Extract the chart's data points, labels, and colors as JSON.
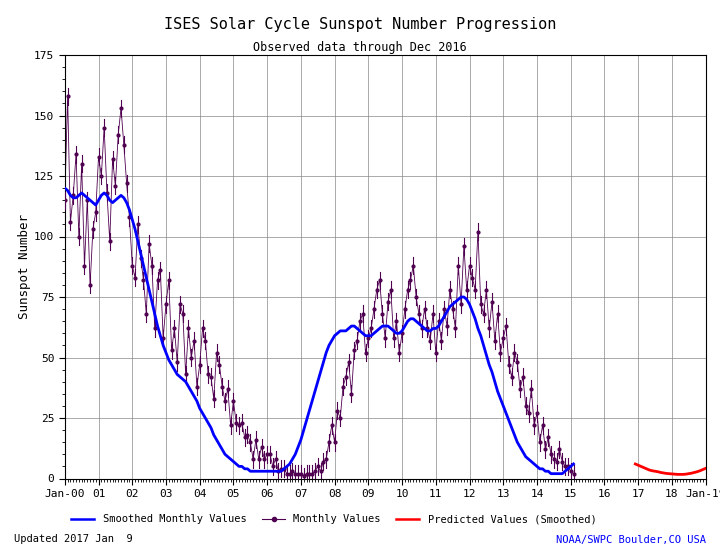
{
  "title": "ISES Solar Cycle Sunspot Number Progression",
  "subtitle": "Observed data through Dec 2016",
  "ylabel": "Sunspot Number",
  "updated_text": "Updated 2017 Jan  9",
  "credit_text": "NOAA/SWPC Boulder,CO USA",
  "credit_color": "#0000FF",
  "ylim": [
    0,
    175
  ],
  "yticks": [
    0,
    25,
    50,
    75,
    100,
    125,
    150,
    175
  ],
  "bg_color": "#ffffff",
  "grid_color": "#000000",
  "smoothed_color": "#0000FF",
  "monthly_color": "#500050",
  "predicted_color": "#FF0000",
  "start_year": 2000.0,
  "xtick_labels": [
    "Jan-00",
    "01",
    "02",
    "03",
    "04",
    "05",
    "06",
    "07",
    "08",
    "09",
    "10",
    "11",
    "12",
    "13",
    "14",
    "15",
    "16",
    "17",
    "18",
    "Jan-19"
  ],
  "smoothed_monthly": [
    120,
    119,
    117,
    116,
    116,
    117,
    118,
    117,
    116,
    115,
    114,
    113,
    115,
    117,
    118,
    117,
    115,
    114,
    115,
    116,
    117,
    116,
    114,
    111,
    107,
    103,
    98,
    93,
    88,
    83,
    78,
    73,
    68,
    63,
    59,
    55,
    52,
    49,
    47,
    45,
    43,
    42,
    41,
    40,
    38,
    36,
    34,
    32,
    29,
    27,
    25,
    23,
    21,
    18,
    16,
    14,
    12,
    10,
    9,
    8,
    7,
    6,
    5,
    5,
    4,
    4,
    3,
    3,
    3,
    3,
    3,
    3,
    3,
    3,
    3,
    3,
    3,
    3,
    4,
    5,
    6,
    8,
    10,
    13,
    16,
    20,
    24,
    28,
    32,
    36,
    40,
    44,
    48,
    52,
    55,
    57,
    59,
    60,
    61,
    61,
    61,
    62,
    63,
    63,
    62,
    61,
    60,
    59,
    59,
    59,
    60,
    61,
    62,
    63,
    63,
    63,
    62,
    61,
    60,
    60,
    61,
    63,
    65,
    66,
    66,
    65,
    64,
    63,
    62,
    61,
    61,
    62,
    62,
    63,
    65,
    67,
    69,
    71,
    72,
    73,
    74,
    75,
    75,
    74,
    72,
    69,
    66,
    62,
    59,
    55,
    51,
    47,
    44,
    40,
    36,
    33,
    30,
    27,
    24,
    21,
    18,
    15,
    13,
    11,
    9,
    8,
    7,
    6,
    5,
    4,
    4,
    3,
    3,
    2,
    2,
    2,
    2,
    2,
    3,
    4,
    5,
    6
  ],
  "monthly": [
    115,
    158,
    106,
    117,
    134,
    100,
    130,
    88,
    115,
    80,
    103,
    110,
    133,
    125,
    145,
    118,
    98,
    132,
    121,
    142,
    153,
    138,
    122,
    108,
    88,
    83,
    105,
    91,
    82,
    68,
    97,
    88,
    62,
    82,
    86,
    58,
    72,
    82,
    53,
    62,
    48,
    72,
    68,
    43,
    62,
    50,
    57,
    38,
    47,
    62,
    57,
    43,
    42,
    33,
    52,
    47,
    38,
    32,
    37,
    22,
    32,
    23,
    22,
    23,
    17,
    18,
    15,
    8,
    16,
    8,
    13,
    8,
    10,
    10,
    5,
    8,
    3,
    4,
    4,
    2,
    2,
    3,
    2,
    2,
    2,
    1,
    2,
    2,
    2,
    3,
    5,
    3,
    7,
    8,
    15,
    22,
    15,
    28,
    25,
    38,
    42,
    48,
    35,
    53,
    57,
    65,
    68,
    52,
    58,
    62,
    70,
    78,
    82,
    68,
    58,
    73,
    78,
    58,
    65,
    52,
    60,
    70,
    78,
    82,
    88,
    75,
    68,
    62,
    70,
    62,
    57,
    68,
    52,
    65,
    57,
    70,
    63,
    78,
    70,
    62,
    88,
    72,
    96,
    78,
    88,
    83,
    78,
    102,
    72,
    68,
    78,
    62,
    73,
    57,
    68,
    52,
    58,
    63,
    47,
    42,
    52,
    48,
    37,
    42,
    30,
    27,
    37,
    22,
    27,
    15,
    22,
    12,
    17,
    10,
    8,
    7,
    12,
    7,
    5,
    5,
    3,
    2
  ],
  "predicted_smoothed_x": [
    2016.917,
    2017.0,
    2017.083,
    2017.167,
    2017.25,
    2017.333,
    2017.417,
    2017.5,
    2017.583,
    2017.667,
    2017.75,
    2017.833,
    2017.917,
    2018.0,
    2018.083,
    2018.167,
    2018.25,
    2018.333,
    2018.417,
    2018.5,
    2018.583,
    2018.667,
    2018.75,
    2018.833,
    2018.917,
    2019.0
  ],
  "predicted_smoothed_y": [
    6,
    5.5,
    5,
    4.5,
    4,
    3.5,
    3.2,
    3.0,
    2.8,
    2.5,
    2.3,
    2.1,
    2.0,
    1.9,
    1.8,
    1.7,
    1.7,
    1.7,
    1.8,
    2.0,
    2.2,
    2.5,
    2.8,
    3.2,
    3.7,
    4.2
  ]
}
